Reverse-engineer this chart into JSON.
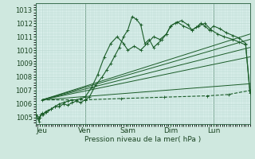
{
  "background_color": "#cfe8df",
  "plot_bg_color": "#d8eeea",
  "grid_color": "#b8d8d0",
  "line_color": "#1a5c28",
  "xlim": [
    0,
    5.0
  ],
  "ylim": [
    1004.5,
    1013.5
  ],
  "yticks": [
    1005,
    1006,
    1007,
    1008,
    1009,
    1010,
    1011,
    1012,
    1013
  ],
  "xtick_labels": [
    "Jeu",
    "Ven",
    "Sam",
    "Dim",
    "Lun"
  ],
  "xtick_positions": [
    0.15,
    1.15,
    2.15,
    3.15,
    4.15
  ],
  "xlabel": "Pression niveau de la mer( hPa )",
  "lines": [
    {
      "x": [
        0.0,
        0.05,
        0.08,
        0.1,
        0.12,
        0.15,
        0.18,
        0.22,
        0.28,
        0.35,
        0.45,
        0.55,
        0.65,
        0.75,
        0.85,
        0.95,
        1.05,
        1.15,
        1.25,
        1.4,
        1.55,
        1.65,
        1.75,
        1.85,
        1.95,
        2.05,
        2.15,
        2.25,
        2.35,
        2.45,
        2.55,
        2.65,
        2.75,
        2.85,
        2.95,
        3.05,
        3.15,
        3.25,
        3.4,
        3.55,
        3.65,
        3.75,
        3.85,
        3.95,
        4.05,
        4.15,
        4.3,
        4.45,
        4.6,
        4.75,
        4.9,
        5.0
      ],
      "y": [
        1005.2,
        1004.9,
        1004.7,
        1005.0,
        1005.2,
        1005.3,
        1005.2,
        1005.4,
        1005.5,
        1005.6,
        1005.8,
        1005.8,
        1006.0,
        1005.9,
        1006.1,
        1006.2,
        1006.1,
        1006.3,
        1006.5,
        1007.4,
        1008.0,
        1008.5,
        1009.0,
        1009.6,
        1010.2,
        1011.0,
        1011.5,
        1012.5,
        1012.3,
        1011.9,
        1010.5,
        1010.8,
        1010.2,
        1010.5,
        1010.8,
        1011.2,
        1011.8,
        1012.0,
        1012.2,
        1011.9,
        1011.5,
        1011.7,
        1012.0,
        1011.8,
        1011.5,
        1011.8,
        1011.6,
        1011.3,
        1011.1,
        1010.9,
        1010.5,
        1006.8
      ],
      "style": "-",
      "marker": "+"
    },
    {
      "x": [
        0.0,
        0.08,
        0.15,
        0.25,
        0.35,
        0.45,
        0.55,
        0.65,
        0.75,
        0.85,
        0.95,
        1.05,
        1.15,
        1.3,
        1.45,
        1.6,
        1.75,
        1.9,
        2.05,
        2.15,
        2.3,
        2.45,
        2.6,
        2.75,
        2.9,
        3.05,
        3.15,
        3.3,
        3.45,
        3.65,
        3.8,
        3.95,
        4.1,
        4.25,
        4.4,
        4.6,
        4.75,
        4.9,
        5.0
      ],
      "y": [
        1005.2,
        1005.0,
        1005.2,
        1005.4,
        1005.6,
        1005.8,
        1006.0,
        1006.1,
        1006.2,
        1006.3,
        1006.3,
        1006.4,
        1006.5,
        1007.2,
        1008.2,
        1009.5,
        1010.5,
        1011.0,
        1010.5,
        1010.0,
        1010.3,
        1010.0,
        1010.5,
        1011.0,
        1010.8,
        1011.2,
        1011.8,
        1012.1,
        1011.8,
        1011.5,
        1011.8,
        1012.0,
        1011.5,
        1011.2,
        1011.0,
        1010.8,
        1010.6,
        1010.4,
        1007.0
      ],
      "style": "-",
      "marker": "+"
    },
    {
      "x": [
        0.15,
        5.0
      ],
      "y": [
        1006.3,
        1011.2
      ],
      "style": "-",
      "marker": "none"
    },
    {
      "x": [
        0.15,
        5.0
      ],
      "y": [
        1006.3,
        1010.8
      ],
      "style": "-",
      "marker": "none"
    },
    {
      "x": [
        0.15,
        5.0
      ],
      "y": [
        1006.3,
        1010.2
      ],
      "style": "-",
      "marker": "none"
    },
    {
      "x": [
        0.15,
        5.0
      ],
      "y": [
        1006.3,
        1009.5
      ],
      "style": "-",
      "marker": "none"
    },
    {
      "x": [
        0.15,
        5.0
      ],
      "y": [
        1006.3,
        1007.5
      ],
      "style": "-",
      "marker": "none"
    },
    {
      "x": [
        0.15,
        1.15,
        2.0,
        3.0,
        4.0,
        4.5,
        5.0
      ],
      "y": [
        1006.3,
        1006.3,
        1006.4,
        1006.5,
        1006.6,
        1006.7,
        1007.0
      ],
      "style": "--",
      "marker": "+"
    }
  ],
  "vline_positions": [
    1.15,
    4.15
  ],
  "vline_color": "#3a6e50"
}
